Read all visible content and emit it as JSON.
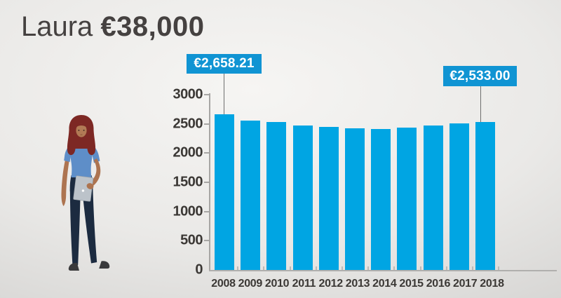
{
  "title": {
    "name": "Laura",
    "amount": "€38,000"
  },
  "colors": {
    "bar": "#00a5e3",
    "callout_bg": "#1094d3",
    "callout_text": "#ffffff",
    "title_text": "#454140",
    "axis": "#a7a6a4",
    "label_text": "#3b3835"
  },
  "person_illustration": "woman-holding-tablet",
  "chart_data": {
    "type": "bar",
    "title": "Laura €38,000",
    "categories": [
      "2008",
      "2009",
      "2010",
      "2011",
      "2012",
      "2013",
      "2014",
      "2015",
      "2016",
      "2017",
      "2018"
    ],
    "values": [
      2658.21,
      2560,
      2535,
      2470,
      2450,
      2420,
      2415,
      2440,
      2475,
      2505,
      2533
    ],
    "xlabel": "",
    "ylabel": "",
    "ylim": [
      0,
      3000
    ],
    "y_ticks": [
      0,
      500,
      1000,
      1500,
      2000,
      2500,
      3000
    ],
    "grid": false,
    "legend": false,
    "bar_color": "#00a5e3",
    "annotations": [
      {
        "category": "2008",
        "label": "€2,658.21",
        "value": 2658.21
      },
      {
        "category": "2018",
        "label": "€2,533.00",
        "value": 2533.0
      }
    ]
  }
}
